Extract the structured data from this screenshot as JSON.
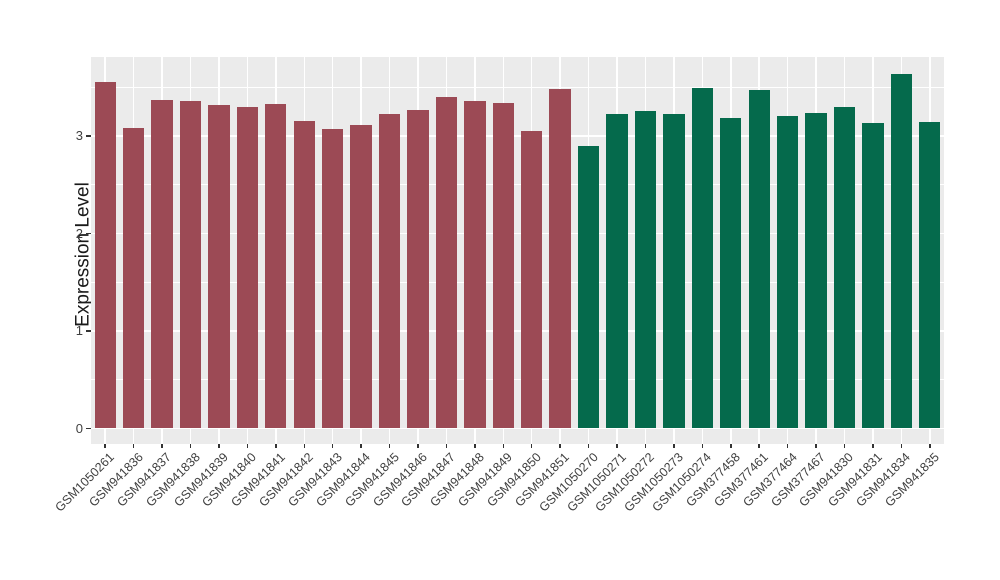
{
  "chart_data": {
    "type": "bar",
    "title": "",
    "xlabel": "",
    "ylabel": "Expression Level",
    "categories": [
      "GSM1050261",
      "GSM941836",
      "GSM941837",
      "GSM941838",
      "GSM941839",
      "GSM941840",
      "GSM941841",
      "GSM941842",
      "GSM941843",
      "GSM941844",
      "GSM941845",
      "GSM941846",
      "GSM941847",
      "GSM941848",
      "GSM941849",
      "GSM941850",
      "GSM941851",
      "GSM1050270",
      "GSM1050271",
      "GSM1050272",
      "GSM1050273",
      "GSM1050274",
      "GSM377458",
      "GSM377461",
      "GSM377464",
      "GSM377467",
      "GSM941830",
      "GSM941831",
      "GSM941834",
      "GSM941835"
    ],
    "values": [
      3.55,
      3.08,
      3.37,
      3.36,
      3.32,
      3.3,
      3.33,
      3.15,
      3.07,
      3.11,
      3.23,
      3.27,
      3.4,
      3.36,
      3.34,
      3.05,
      3.48,
      2.9,
      3.23,
      3.26,
      3.23,
      3.49,
      3.18,
      3.47,
      3.2,
      3.24,
      3.3,
      3.13,
      3.64,
      3.14
    ],
    "bar_group_index": [
      0,
      0,
      0,
      0,
      0,
      0,
      0,
      0,
      0,
      0,
      0,
      0,
      0,
      0,
      0,
      0,
      0,
      1,
      1,
      1,
      1,
      1,
      1,
      1,
      1,
      1,
      1,
      1,
      1,
      1
    ],
    "groups": [
      {
        "name": "group-1",
        "color": "#9C4A55"
      },
      {
        "name": "group-2",
        "color": "#056A4C"
      }
    ],
    "yticks": [
      0,
      1,
      2,
      3
    ],
    "yminor": [
      0.5,
      1.5,
      2.5,
      3.5
    ],
    "ylim": [
      -0.16,
      3.81
    ],
    "grid": true,
    "legend_position": "none",
    "bar_width_fraction": 0.75
  },
  "style": {
    "panel_bg": "#EBEBEB",
    "grid_color": "#FFFFFF",
    "axis_text_color": "#404040",
    "tick_color": "#333333"
  }
}
